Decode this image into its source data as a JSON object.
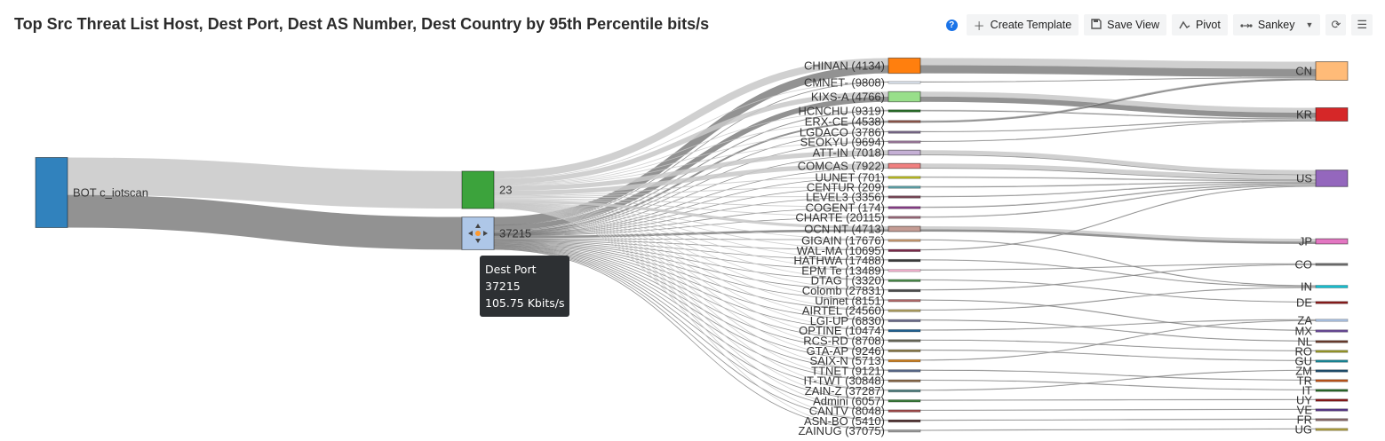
{
  "header": {
    "title": "Top Src Threat List Host, Dest Port, Dest AS Number, Dest Country by 95th Percentile bits/s",
    "toolbar": {
      "help_icon": "?",
      "create_template": "Create Template",
      "save_view": "Save View",
      "pivot": "Pivot",
      "chart_type": "Sankey"
    }
  },
  "tooltip": {
    "title": "Dest Port",
    "value": "37215",
    "metric": "105.75 Kbits/s"
  },
  "chart_data": {
    "type": "sankey",
    "metric": "95th Percentile bits/s (Kbits/s, approximate)",
    "columns": [
      "Src Threat List Host",
      "Dest Port",
      "Dest AS Number",
      "Dest Country"
    ],
    "source": {
      "label": "BOT c_iotscan",
      "color": "#3182bd"
    },
    "ports": [
      {
        "label": "23",
        "color": "#3ca33c",
        "link_color": "#c8c8c8"
      },
      {
        "label": "37215",
        "color": "#aec7e8",
        "link_color": "#6e6e6e",
        "value_label": "105.75 Kbits/s"
      }
    ],
    "asns": [
      {
        "label": "CHINAN (4134)",
        "color": "#ff7f0e",
        "country": "CN",
        "v23": 25,
        "v37215": 28
      },
      {
        "label": "CMNET- (9808)",
        "color": "#dfe6f0",
        "country": "CN",
        "v23": 2,
        "v37215": 1
      },
      {
        "label": "KIXS-A (4766)",
        "color": "#98df8a",
        "country": "KR",
        "v23": 17,
        "v37215": 18
      },
      {
        "label": "HCNCHU (9319)",
        "color": "#2a6e2a",
        "country": "KR",
        "v23": 2,
        "v37215": 3
      },
      {
        "label": "ERX-CE (4538)",
        "color": "#8c564b",
        "country": "CN",
        "v23": 2,
        "v37215": 6
      },
      {
        "label": "LGDACO (3786)",
        "color": "#7a6a8a",
        "country": "KR",
        "v23": 2,
        "v37215": 1
      },
      {
        "label": "SEOKYU (9694)",
        "color": "#9c7a9c",
        "country": "KR",
        "v23": 2,
        "v37215": 1
      },
      {
        "label": "ATT-IN (7018)",
        "color": "#c5b0d5",
        "country": "US",
        "v23": 16,
        "v37215": 1
      },
      {
        "label": "COMCAS (7922)",
        "color": "#f08080",
        "country": "US",
        "v23": 16,
        "v37215": 1
      },
      {
        "label": "UUNET (701)",
        "color": "#bcbd22",
        "country": "US",
        "v23": 3,
        "v37215": 1
      },
      {
        "label": "CENTUR (209)",
        "color": "#5fa2a8",
        "country": "US",
        "v23": 3,
        "v37215": 1
      },
      {
        "label": "LEVEL3 (3356)",
        "color": "#7b4a5a",
        "country": "US",
        "v23": 3,
        "v37215": 1
      },
      {
        "label": "COGENT (174)",
        "color": "#8a3f8a",
        "country": "US",
        "v23": 3,
        "v37215": 1
      },
      {
        "label": "CHARTE (20115)",
        "color": "#9a6a7a",
        "country": "US",
        "v23": 3,
        "v37215": 1
      },
      {
        "label": "OCN NT (4713)",
        "color": "#c49c94",
        "country": "JP",
        "v23": 10,
        "v37215": 8
      },
      {
        "label": "GIGAIN (17676)",
        "color": "#c89a70",
        "country": "IN",
        "v23": 1,
        "v37215": 2
      },
      {
        "label": "WAL-MA (10695)",
        "color": "#7b2a4a",
        "country": "US",
        "v23": 1,
        "v37215": 2
      },
      {
        "label": "HATHWA (17488)",
        "color": "#3a3a3a",
        "country": "IN",
        "v23": 1,
        "v37215": 2
      },
      {
        "label": "EPM Te (13489)",
        "color": "#f7b6d2",
        "country": "CO",
        "v23": 1,
        "v37215": 2
      },
      {
        "label": "DTAG | (3320)",
        "color": "#4a8a4a",
        "country": "DE",
        "v23": 1,
        "v37215": 2
      },
      {
        "label": "Colomb (27831)",
        "color": "#4a4a4a",
        "country": "CO",
        "v23": 1,
        "v37215": 2
      },
      {
        "label": "Uninet (8151)",
        "color": "#b06a6a",
        "country": "MX",
        "v23": 1,
        "v37215": 2
      },
      {
        "label": "AIRTEL (24560)",
        "color": "#b0a060",
        "country": "IN",
        "v23": 1,
        "v37215": 2
      },
      {
        "label": "LGI-UP (6830)",
        "color": "#6a6a8a",
        "country": "NL",
        "v23": 1,
        "v37215": 2
      },
      {
        "label": "OPTINE (10474)",
        "color": "#1f5f8f",
        "country": "ZA",
        "v23": 1,
        "v37215": 2
      },
      {
        "label": "RCS-RD (8708)",
        "color": "#6a6a5a",
        "country": "RO",
        "v23": 1,
        "v37215": 2
      },
      {
        "label": "GTA-AP (9246)",
        "color": "#8a7a4a",
        "country": "GU",
        "v23": 1,
        "v37215": 2
      },
      {
        "label": "SAIX-N (5713)",
        "color": "#c87a1a",
        "country": "ZA",
        "v23": 1,
        "v37215": 2
      },
      {
        "label": "TTNET (9121)",
        "color": "#5a6a8a",
        "country": "TR",
        "v23": 1,
        "v37215": 2
      },
      {
        "label": "IT-TWT (30848)",
        "color": "#8a6a4a",
        "country": "IT",
        "v23": 1,
        "v37215": 2
      },
      {
        "label": "ZAIN-Z (37287)",
        "color": "#4a7a7a",
        "country": "ZM",
        "v23": 1,
        "v37215": 2
      },
      {
        "label": "Admini (6057)",
        "color": "#3a7a3a",
        "country": "UY",
        "v23": 1,
        "v37215": 2
      },
      {
        "label": "CANTV (8048)",
        "color": "#a04a4a",
        "country": "VE",
        "v23": 1,
        "v37215": 2
      },
      {
        "label": "ASN-BO (5410)",
        "color": "#4a2a2a",
        "country": "FR",
        "v23": 1,
        "v37215": 2
      },
      {
        "label": "ZAINUG (37075)",
        "color": "#9a9a9a",
        "country": "UG",
        "v23": 1,
        "v37215": 2
      }
    ],
    "countries": [
      {
        "label": "CN",
        "color": "#ffbb78"
      },
      {
        "label": "KR",
        "color": "#d62728"
      },
      {
        "label": "US",
        "color": "#9467bd"
      },
      {
        "label": "JP",
        "color": "#e377c2"
      },
      {
        "label": "CO",
        "color": "#6f6f6f"
      },
      {
        "label": "IN",
        "color": "#17becf"
      },
      {
        "label": "DE",
        "color": "#8c1c1c"
      },
      {
        "label": "ZA",
        "color": "#aec7e8"
      },
      {
        "label": "MX",
        "color": "#6b4c9a"
      },
      {
        "label": "NL",
        "color": "#6b3d2e"
      },
      {
        "label": "RO",
        "color": "#9a9a2a"
      },
      {
        "label": "GU",
        "color": "#1a8a9a"
      },
      {
        "label": "ZM",
        "color": "#1f4f6f"
      },
      {
        "label": "TR",
        "color": "#c0561a"
      },
      {
        "label": "IT",
        "color": "#2a6a2a"
      },
      {
        "label": "UY",
        "color": "#8a1a1a"
      },
      {
        "label": "VE",
        "color": "#5a3a8a"
      },
      {
        "label": "FR",
        "color": "#8a6a6a"
      },
      {
        "label": "UG",
        "color": "#b0a040"
      }
    ]
  }
}
